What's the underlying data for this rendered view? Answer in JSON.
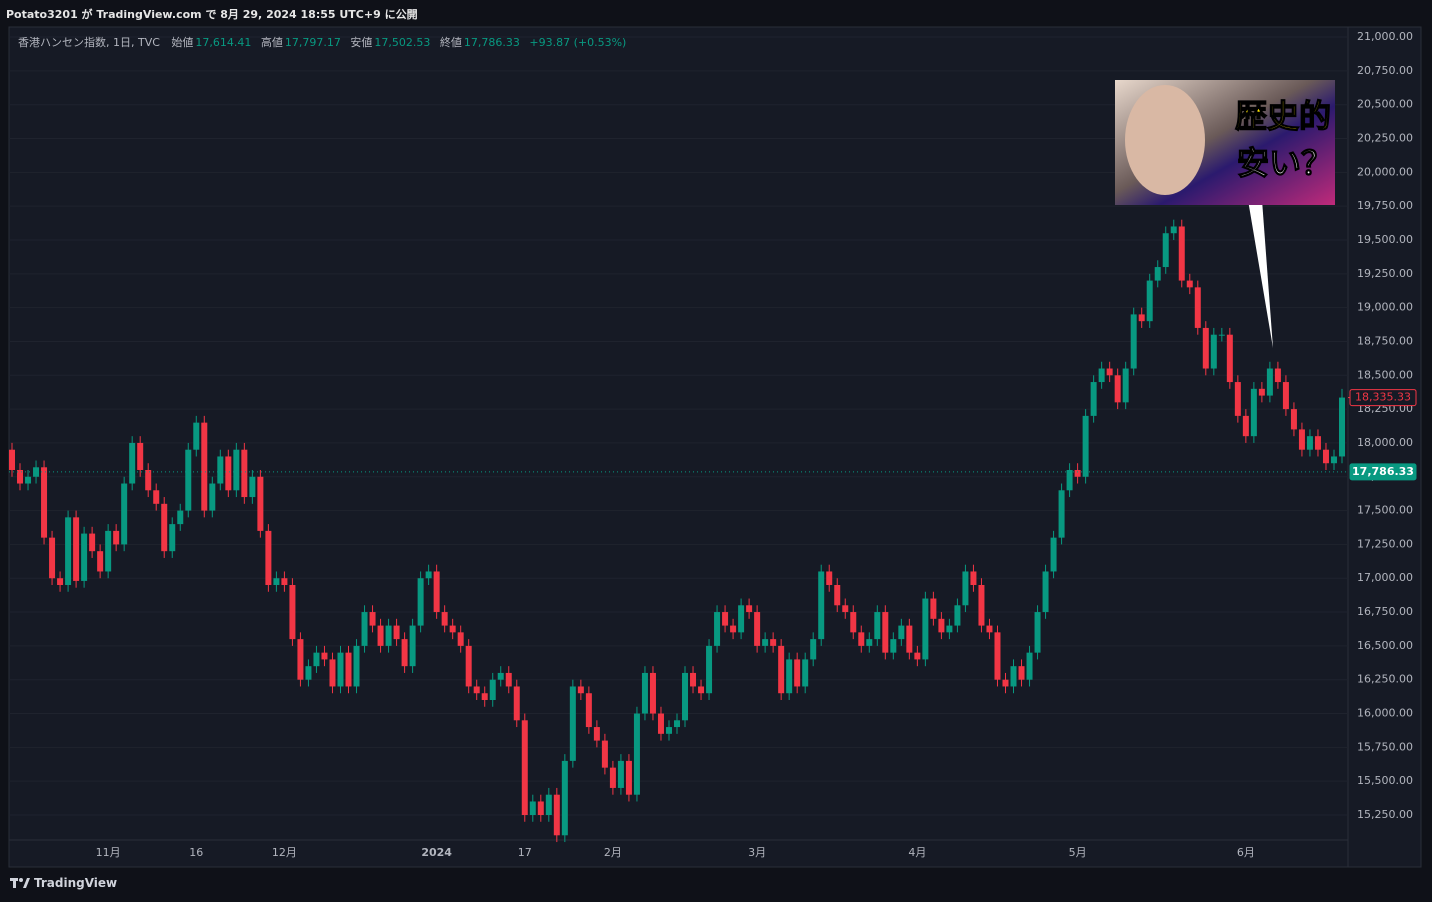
{
  "header": {
    "publisher": "Potato3201 が TradingView.com で 8月 29, 2024 18:55 UTC+9 に公開"
  },
  "chart_data": {
    "type": "candlestick",
    "symbol": "香港ハンセン指数, 1日, TVC",
    "legend": {
      "open_label": "始値",
      "open": "17,614.41",
      "high_label": "高値",
      "high": "17,797.17",
      "low_label": "安値",
      "low": "17,502.53",
      "close_label": "終値",
      "close": "17,786.33",
      "change": "+93.87 (+0.53%)"
    },
    "categories": [
      null,
      null,
      null,
      null,
      null,
      null,
      null,
      null,
      null,
      null,
      null,
      null,
      "11月",
      null,
      null,
      null,
      null,
      null,
      null,
      null,
      null,
      null,
      null,
      "16",
      null,
      null,
      null,
      null,
      null,
      null,
      null,
      null,
      null,
      null,
      "12月",
      null,
      null,
      null,
      null,
      null,
      null,
      null,
      null,
      null,
      null,
      null,
      null,
      null,
      null,
      null,
      null,
      null,
      null,
      "2024",
      null,
      null,
      null,
      null,
      null,
      null,
      null,
      null,
      null,
      null,
      "17",
      null,
      null,
      null,
      null,
      null,
      null,
      null,
      null,
      null,
      null,
      "2月",
      null,
      null,
      null,
      null,
      null,
      null,
      null,
      null,
      null,
      null,
      null,
      null,
      null,
      null,
      null,
      null,
      null,
      "3月",
      null,
      null,
      null,
      null,
      null,
      null,
      null,
      null,
      null,
      null,
      null,
      null,
      null,
      null,
      null,
      null,
      null,
      null,
      null,
      "4月",
      null,
      null,
      null,
      null,
      null,
      null,
      null,
      null,
      null,
      null,
      null,
      null,
      null,
      null,
      null,
      null,
      null,
      null,
      null,
      "5月",
      null,
      null,
      null,
      null,
      null,
      null,
      null,
      null,
      null,
      null,
      null,
      null,
      null,
      null,
      null,
      null,
      null,
      null,
      null,
      null,
      "6月",
      null,
      null,
      null,
      null,
      null,
      null,
      null,
      null,
      null,
      null,
      null,
      null
    ],
    "open": [
      17950,
      17800,
      17700,
      17750,
      17820,
      17300,
      17000,
      16950,
      17450,
      16980,
      17330,
      17200,
      17050,
      17350,
      17250,
      17700,
      18000,
      17800,
      17650,
      17550,
      17200,
      17400,
      17500,
      17950,
      18150,
      17500,
      17700,
      17900,
      17650,
      17950,
      17600,
      17750,
      17350,
      16950,
      17000,
      16950,
      16550,
      16250,
      16350,
      16450,
      16400,
      16200,
      16450,
      16200,
      16500,
      16750,
      16650,
      16500,
      16650,
      16550,
      16350,
      16650,
      17000,
      17050,
      16750,
      16650,
      16600,
      16500,
      16200,
      16150,
      16100,
      16250,
      16300,
      16200,
      15950,
      15250,
      15350,
      15250,
      15400,
      15100,
      15650,
      16200,
      16150,
      15900,
      15800,
      15600,
      15450,
      15650,
      15400,
      16000,
      16300,
      16000,
      15850,
      15900,
      15950,
      16300,
      16200,
      16150,
      16500,
      16750,
      16650,
      16600,
      16800,
      16750,
      16500,
      16550,
      16500,
      16150,
      16400,
      16200,
      16400,
      16550,
      17050,
      16950,
      16800,
      16750,
      16600,
      16500,
      16550,
      16750,
      16450,
      16550,
      16650,
      16450,
      16400,
      16850,
      16700,
      16600,
      16650,
      16800,
      17050,
      16950,
      16650,
      16600,
      16250,
      16200,
      16350,
      16250,
      16450,
      16750,
      17050,
      17300,
      17650,
      17800,
      17750,
      18200,
      18450,
      18550,
      18500,
      18300,
      18550,
      18950,
      18900,
      19200,
      19300,
      19550,
      19600,
      19200,
      19150,
      18850,
      18550,
      18800,
      18800,
      18450,
      18200,
      18050,
      18400,
      18350,
      18550,
      18450,
      18250,
      18100,
      17950,
      18050,
      17950,
      17850,
      17900
    ],
    "high": [
      18000,
      17850,
      17800,
      17870,
      17870,
      17350,
      17050,
      17500,
      17500,
      17380,
      17380,
      17250,
      17400,
      17400,
      17750,
      18050,
      18050,
      17850,
      17700,
      17600,
      17450,
      17550,
      18000,
      18200,
      18200,
      17750,
      17950,
      17950,
      18000,
      18000,
      17800,
      17800,
      17400,
      17050,
      17050,
      17000,
      16600,
      16400,
      16500,
      16500,
      16450,
      16500,
      16500,
      16550,
      16800,
      16800,
      16700,
      16700,
      16700,
      16600,
      16700,
      17050,
      17100,
      17100,
      16800,
      16700,
      16650,
      16550,
      16250,
      16200,
      16300,
      16350,
      16350,
      16250,
      16000,
      15400,
      15400,
      15450,
      15450,
      15700,
      16250,
      16250,
      16200,
      15950,
      15850,
      15650,
      15700,
      15700,
      16050,
      16350,
      16350,
      16050,
      15950,
      16000,
      16350,
      16350,
      16250,
      16550,
      16800,
      16800,
      16700,
      16850,
      16850,
      16800,
      16600,
      16600,
      16550,
      16450,
      16450,
      16450,
      16600,
      17100,
      17100,
      17000,
      16850,
      16800,
      16650,
      16600,
      16800,
      16800,
      16600,
      16700,
      16700,
      16500,
      16900,
      16900,
      16750,
      16700,
      16850,
      17100,
      17100,
      17000,
      16700,
      16650,
      16300,
      16400,
      16400,
      16500,
      16800,
      17100,
      17350,
      17700,
      17850,
      17850,
      18250,
      18500,
      18600,
      18600,
      18550,
      18600,
      19000,
      19000,
      19250,
      19350,
      19600,
      19650,
      19650,
      19250,
      19200,
      18900,
      18850,
      18850,
      18850,
      18500,
      18250,
      18450,
      18450,
      18600,
      18600,
      18500,
      18300,
      18150,
      18100,
      18100,
      18000,
      17950,
      18400
    ],
    "low": [
      17750,
      17650,
      17650,
      17700,
      17250,
      16950,
      16900,
      16900,
      16930,
      16930,
      17150,
      17000,
      17000,
      17200,
      17200,
      17650,
      17750,
      17600,
      17500,
      17150,
      17150,
      17350,
      17450,
      17900,
      17450,
      17450,
      17650,
      17600,
      17600,
      17550,
      17550,
      17300,
      16900,
      16900,
      16900,
      16500,
      16200,
      16200,
      16300,
      16350,
      16150,
      16150,
      16150,
      16150,
      16450,
      16600,
      16450,
      16450,
      16500,
      16300,
      16300,
      16600,
      16950,
      16700,
      16600,
      16550,
      16450,
      16150,
      16100,
      16050,
      16050,
      16200,
      16150,
      15900,
      15200,
      15200,
      15200,
      15200,
      15050,
      15050,
      15600,
      16100,
      15850,
      15750,
      15550,
      15400,
      15400,
      15350,
      15350,
      15950,
      15950,
      15800,
      15800,
      15850,
      15900,
      16150,
      16100,
      16100,
      16450,
      16600,
      16550,
      16550,
      16700,
      16450,
      16450,
      16450,
      16100,
      16100,
      16150,
      16150,
      16350,
      16500,
      16900,
      16750,
      16700,
      16550,
      16450,
      16450,
      16500,
      16400,
      16400,
      16500,
      16400,
      16350,
      16350,
      16650,
      16550,
      16550,
      16600,
      16750,
      16900,
      16600,
      16550,
      16200,
      16150,
      16150,
      16200,
      16200,
      16400,
      16700,
      17000,
      17250,
      17600,
      17700,
      17700,
      18150,
      18400,
      18450,
      18250,
      18250,
      18500,
      18850,
      18850,
      19150,
      19250,
      19500,
      19150,
      19100,
      18800,
      18500,
      18500,
      18750,
      18400,
      18150,
      18000,
      18000,
      18300,
      18300,
      18400,
      18200,
      18050,
      17900,
      17900,
      17900,
      17800,
      17800,
      17850
    ],
    "close": [
      17800,
      17700,
      17750,
      17820,
      17300,
      17000,
      16950,
      17450,
      16980,
      17330,
      17200,
      17050,
      17350,
      17250,
      17700,
      18000,
      17800,
      17650,
      17550,
      17200,
      17400,
      17500,
      17950,
      18150,
      17500,
      17700,
      17900,
      17650,
      17950,
      17600,
      17750,
      17350,
      16950,
      17000,
      16950,
      16550,
      16250,
      16350,
      16450,
      16400,
      16200,
      16450,
      16200,
      16500,
      16750,
      16650,
      16500,
      16650,
      16550,
      16350,
      16650,
      17000,
      17050,
      16750,
      16650,
      16600,
      16500,
      16200,
      16150,
      16100,
      16250,
      16300,
      16200,
      15950,
      15250,
      15350,
      15250,
      15400,
      15100,
      15650,
      16200,
      16150,
      15900,
      15800,
      15600,
      15450,
      15650,
      15400,
      16000,
      16300,
      16000,
      15850,
      15900,
      15950,
      16300,
      16200,
      16150,
      16500,
      16750,
      16650,
      16600,
      16800,
      16750,
      16500,
      16550,
      16500,
      16150,
      16400,
      16200,
      16400,
      16550,
      17050,
      16950,
      16800,
      16750,
      16600,
      16500,
      16550,
      16750,
      16450,
      16550,
      16650,
      16450,
      16400,
      16850,
      16700,
      16600,
      16650,
      16800,
      17050,
      16950,
      16650,
      16600,
      16250,
      16200,
      16350,
      16250,
      16450,
      16750,
      17050,
      17300,
      17650,
      17800,
      17750,
      18200,
      18450,
      18550,
      18500,
      18300,
      18550,
      18950,
      18900,
      19200,
      19300,
      19550,
      19600,
      19200,
      19150,
      18850,
      18550,
      18800,
      18800,
      18450,
      18200,
      18050,
      18400,
      18350,
      18550,
      18450,
      18250,
      18100,
      17950,
      18050,
      17950,
      17850,
      17900,
      18335.33
    ],
    "up_color": "#089981",
    "down_color": "#f23645",
    "ylim": [
      15080,
      21126
    ],
    "yticks": [
      {
        "value": 15250,
        "label": "15,250.00"
      },
      {
        "value": 15500,
        "label": "15,500.00"
      },
      {
        "value": 15750,
        "label": "15,750.00"
      },
      {
        "value": 16000,
        "label": "16,000.00"
      },
      {
        "value": 16250,
        "label": "16,250.00"
      },
      {
        "value": 16500,
        "label": "16,500.00"
      },
      {
        "value": 16750,
        "label": "16,750.00"
      },
      {
        "value": 17000,
        "label": "17,000.00"
      },
      {
        "value": 17250,
        "label": "17,250.00"
      },
      {
        "value": 17500,
        "label": "17,500.00"
      },
      {
        "value": 17750,
        "label": "17,750.00"
      },
      {
        "value": 18000,
        "label": "18,000.00"
      },
      {
        "value": 18250,
        "label": "18,250.00"
      },
      {
        "value": 18500,
        "label": "18,500.00"
      },
      {
        "value": 18750,
        "label": "18,750.00"
      },
      {
        "value": 19000,
        "label": "19,000.00"
      },
      {
        "value": 19250,
        "label": "19,250.00"
      },
      {
        "value": 19500,
        "label": "19,500.00"
      },
      {
        "value": 19750,
        "label": "19,750.00"
      },
      {
        "value": 20000,
        "label": "20,000.00"
      },
      {
        "value": 20250,
        "label": "20,250.00"
      },
      {
        "value": 20500,
        "label": "20,500.00"
      },
      {
        "value": 20750,
        "label": "20,750.00"
      },
      {
        "value": 21000,
        "label": "21,000.00"
      }
    ],
    "price_lines": [
      {
        "value": 17786.33,
        "label": "17,786.33",
        "color": "#089981",
        "filled": true,
        "dotted": true
      },
      {
        "value": 18335.33,
        "label": "18,335.33",
        "color": "#f23645",
        "filled": false,
        "dotted": false
      }
    ],
    "grid": true
  },
  "thumbnail": {
    "line1": "歴史的",
    "line2": "安い？"
  },
  "footer": {
    "brand": "TradingView"
  }
}
